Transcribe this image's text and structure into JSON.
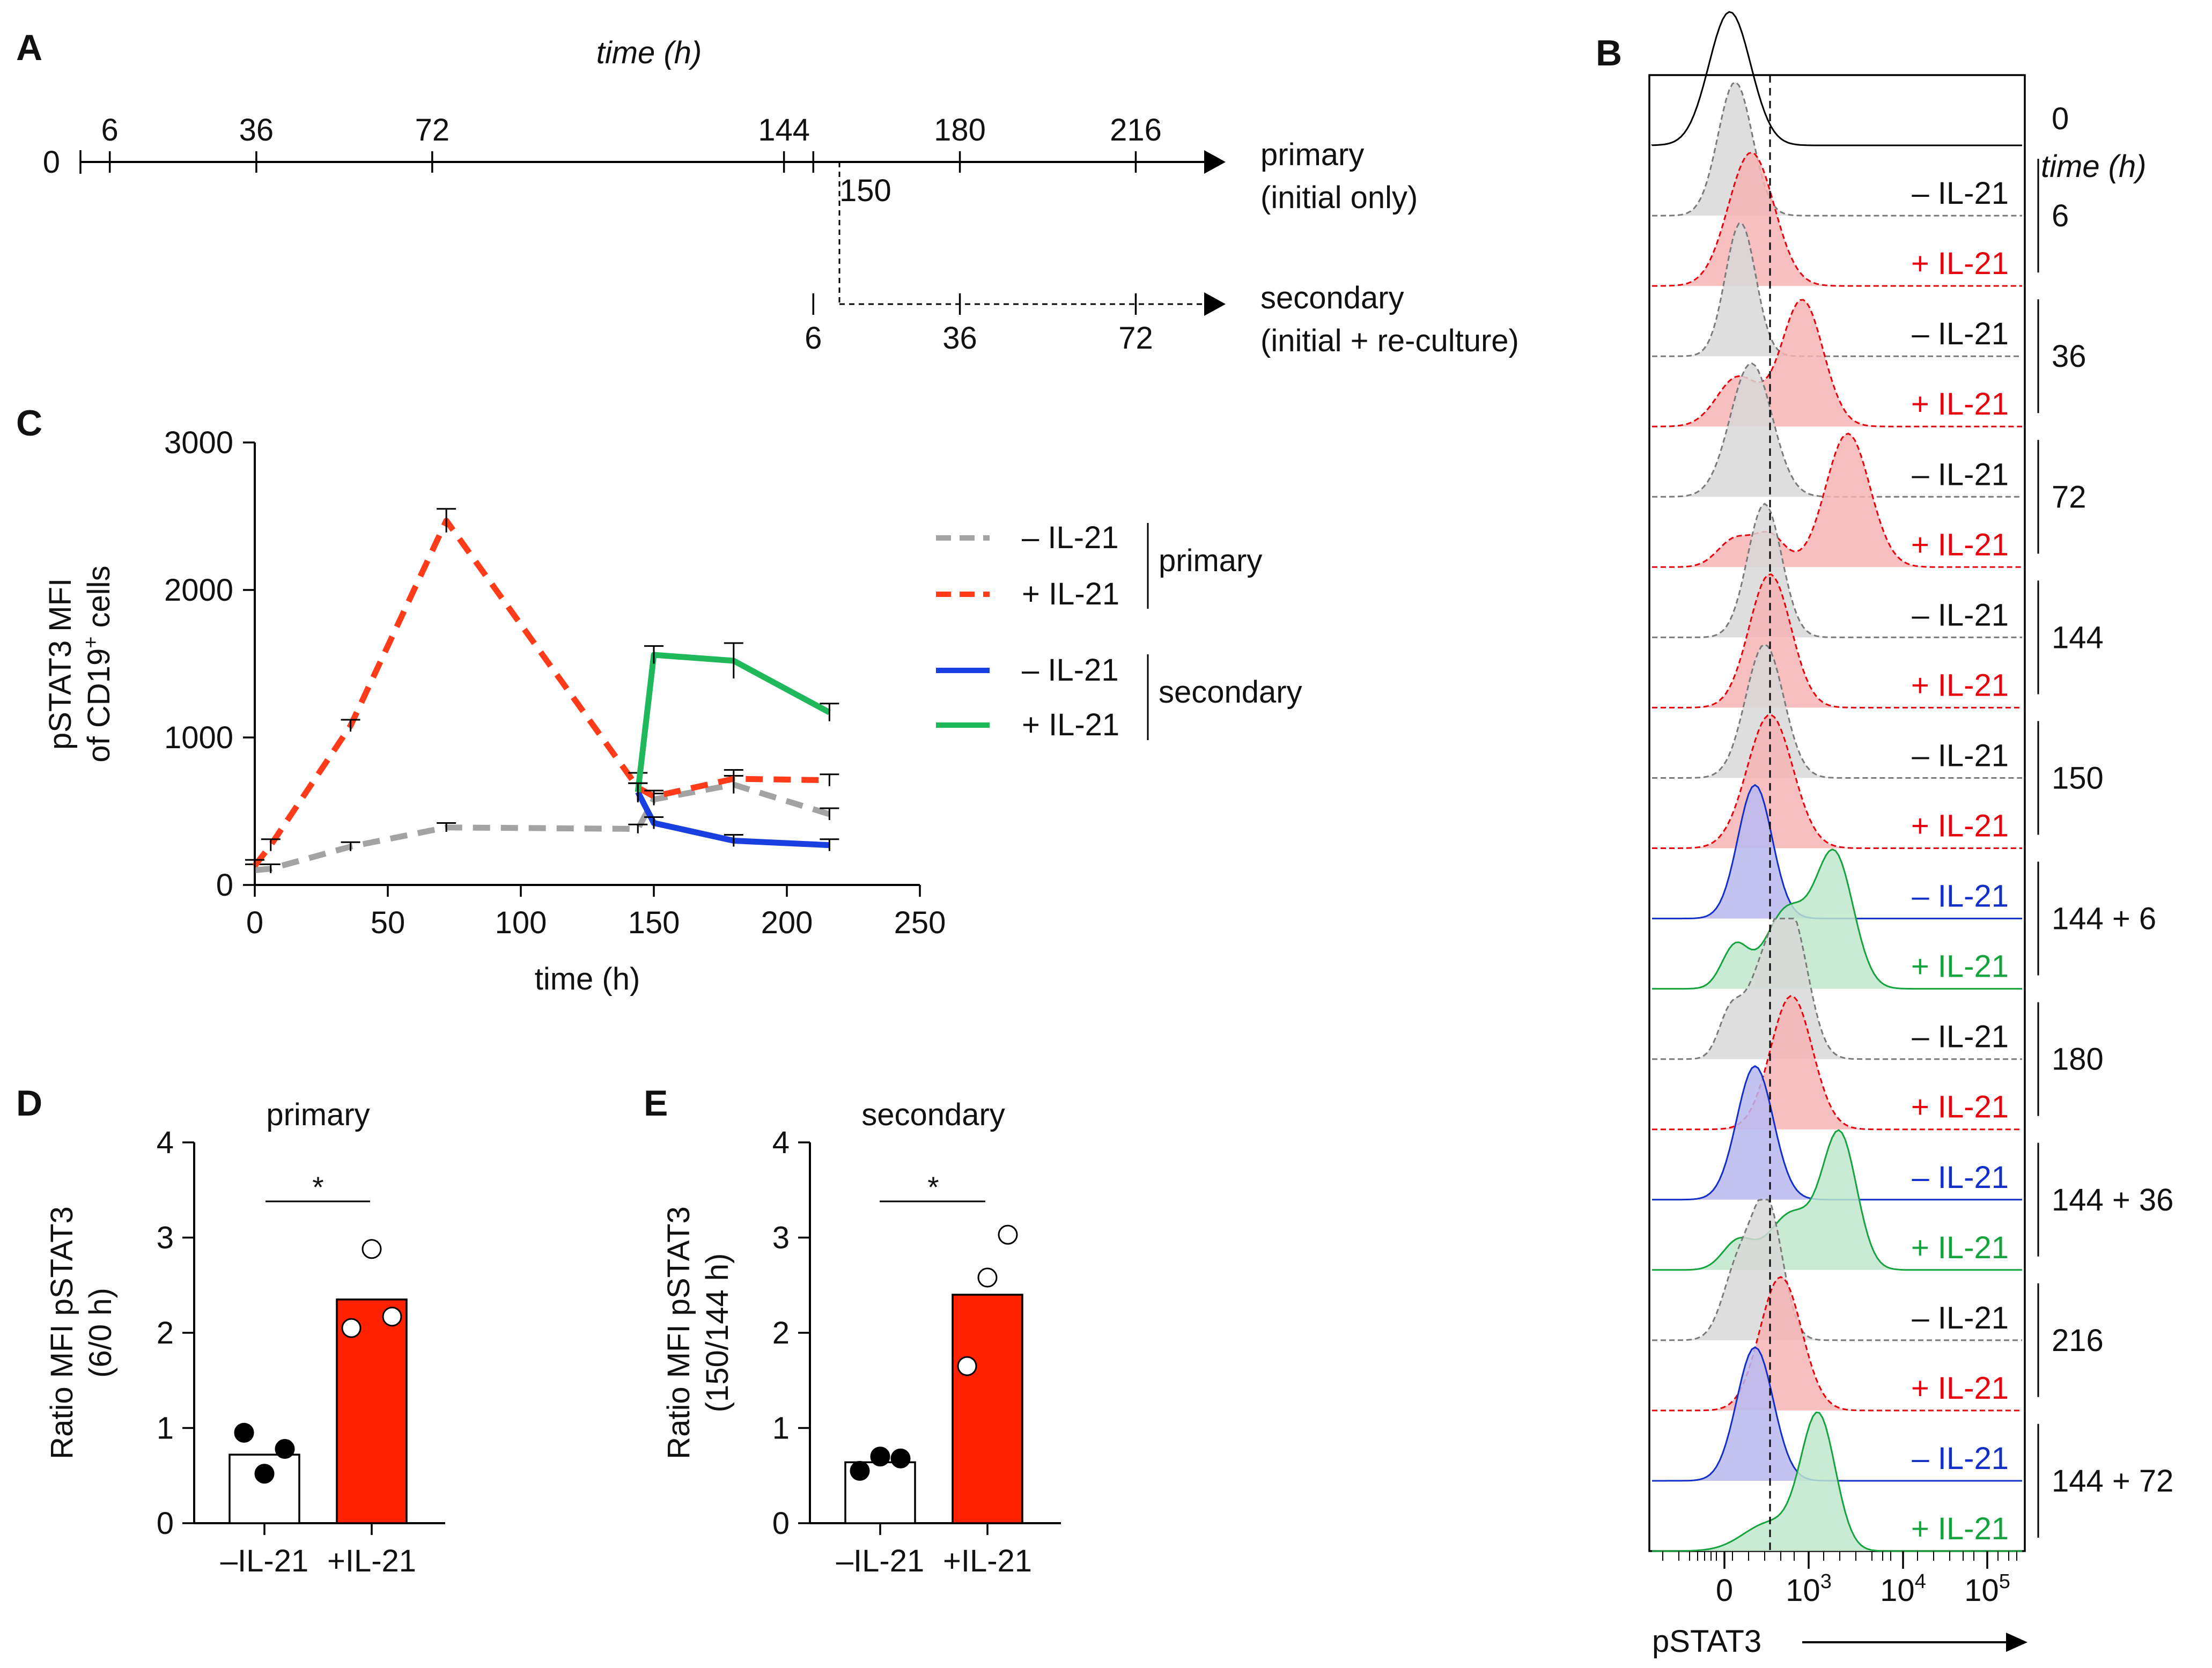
{
  "panels": {
    "a": "A",
    "b": "B",
    "c": "C",
    "d": "D",
    "e": "E"
  },
  "colors": {
    "minus_primary": "#a3a3a3",
    "plus_primary": "#ff3b1a",
    "minus_secondary": "#1a3fe0",
    "plus_secondary": "#1fb85a",
    "bar_minus": "#ffffff",
    "bar_plus": "#ff2200",
    "hist_grey_fill": "#d8d8d8",
    "hist_red_fill": "#f6b4b4",
    "hist_blue_fill": "#b9b9f0",
    "hist_green_fill": "#bfe8cc",
    "label_red": "#e8000b",
    "label_blue": "#1230c8",
    "label_green": "#14a33c"
  },
  "timeline": {
    "title": "time (h)",
    "primary_ticks": [
      "6",
      "36",
      "72",
      "144",
      "180",
      "216"
    ],
    "zero_label": "0",
    "tick_150": "150",
    "primary_label_1": "primary",
    "primary_label_2": "(initial only)",
    "secondary_ticks": [
      "6",
      "36",
      "72"
    ],
    "secondary_label_1": "secondary",
    "secondary_label_2": "(initial + re-culture)"
  },
  "histograms": {
    "time_header": "time (h)",
    "xlabel": "pSTAT3",
    "x_ticks": [
      "0",
      "10",
      "10",
      "10"
    ],
    "x_tick_exponents": [
      "",
      "3",
      "4",
      "5"
    ],
    "lanes": [
      {
        "label": "",
        "color": "black"
      },
      {
        "label": "– IL-21",
        "color": "grey"
      },
      {
        "label": "+ IL-21",
        "color": "red"
      },
      {
        "label": "– IL-21",
        "color": "grey"
      },
      {
        "label": "+ IL-21",
        "color": "red"
      },
      {
        "label": "– IL-21",
        "color": "grey"
      },
      {
        "label": "+ IL-21",
        "color": "red"
      },
      {
        "label": "– IL-21",
        "color": "grey"
      },
      {
        "label": "+ IL-21",
        "color": "red"
      },
      {
        "label": "– IL-21",
        "color": "grey"
      },
      {
        "label": "+ IL-21",
        "color": "red"
      },
      {
        "label": "– IL-21",
        "color": "blue"
      },
      {
        "label": "+ IL-21",
        "color": "green"
      },
      {
        "label": "– IL-21",
        "color": "grey"
      },
      {
        "label": "+ IL-21",
        "color": "red"
      },
      {
        "label": "– IL-21",
        "color": "blue"
      },
      {
        "label": "+ IL-21",
        "color": "green"
      },
      {
        "label": "– IL-21",
        "color": "grey"
      },
      {
        "label": "+ IL-21",
        "color": "red"
      },
      {
        "label": "– IL-21",
        "color": "blue"
      },
      {
        "label": "+ IL-21",
        "color": "green"
      }
    ],
    "groups": [
      "0",
      "6",
      "36",
      "72",
      "144",
      "150",
      "144 + 6",
      "180",
      "144 + 36",
      "216",
      "144 + 72"
    ]
  },
  "chart_data": [
    {
      "id": "C",
      "type": "line",
      "title": "",
      "xlabel": "time (h)",
      "ylabel_line1": "pSTAT3 MFI",
      "ylabel_line2": "of CD19",
      "ylabel_sup": "+",
      "ylabel_end": " cells",
      "xlim": [
        0,
        250
      ],
      "ylim": [
        0,
        3000
      ],
      "x_ticks": [
        "0",
        "50",
        "100",
        "150",
        "200",
        "250"
      ],
      "y_ticks": [
        "0",
        "1000",
        "2000",
        "3000"
      ],
      "series": [
        {
          "name": "– IL-21",
          "group": "primary",
          "style": "dashed",
          "x": [
            0,
            6,
            36,
            72,
            144,
            150,
            180,
            216
          ],
          "y": [
            100,
            110,
            260,
            390,
            380,
            580,
            680,
            480
          ],
          "err": [
            40,
            30,
            30,
            30,
            30,
            40,
            60,
            40
          ]
        },
        {
          "name": "+ IL-21",
          "group": "primary",
          "style": "dashed",
          "x": [
            0,
            6,
            36,
            72,
            144,
            150,
            180,
            216
          ],
          "y": [
            130,
            270,
            1080,
            2470,
            660,
            600,
            720,
            710
          ],
          "err": [
            40,
            40,
            40,
            80,
            100,
            40,
            60,
            40
          ]
        },
        {
          "name": "– IL-21",
          "group": "secondary",
          "style": "solid",
          "x": [
            144,
            150,
            180,
            216
          ],
          "y": [
            630,
            420,
            300,
            270
          ],
          "err": [
            60,
            40,
            40,
            40
          ]
        },
        {
          "name": "+ IL-21",
          "group": "secondary",
          "style": "solid",
          "x": [
            144,
            150,
            180,
            216
          ],
          "y": [
            630,
            1560,
            1520,
            1170
          ],
          "err": [
            60,
            60,
            120,
            60
          ]
        }
      ],
      "legend": {
        "group1": "primary",
        "group2": "secondary",
        "labels": [
          "– IL-21",
          "+ IL-21",
          "– IL-21",
          "+ IL-21"
        ]
      }
    },
    {
      "id": "D",
      "type": "bar",
      "title": "primary",
      "ylabel_line1": "Ratio MFI pSTAT3",
      "ylabel_line2": "(6/0 h)",
      "categories": [
        "–IL-21",
        "+IL-21"
      ],
      "values": [
        0.72,
        2.35
      ],
      "points": [
        [
          0.95,
          0.52,
          0.78
        ],
        [
          2.05,
          2.88,
          2.17
        ]
      ],
      "ylim": [
        0,
        4
      ],
      "y_ticks": [
        "0",
        "1",
        "2",
        "3",
        "4"
      ],
      "significance": "*"
    },
    {
      "id": "E",
      "type": "bar",
      "title": "secondary",
      "ylabel_line1": "Ratio MFI pSTAT3",
      "ylabel_line2": "(150/144 h)",
      "categories": [
        "–IL-21",
        "+IL-21"
      ],
      "values": [
        0.64,
        2.4
      ],
      "points": [
        [
          0.55,
          0.7,
          0.68
        ],
        [
          1.65,
          2.58,
          3.03
        ]
      ],
      "ylim": [
        0,
        4
      ],
      "y_ticks": [
        "0",
        "1",
        "2",
        "3",
        "4"
      ],
      "significance": "*"
    }
  ]
}
